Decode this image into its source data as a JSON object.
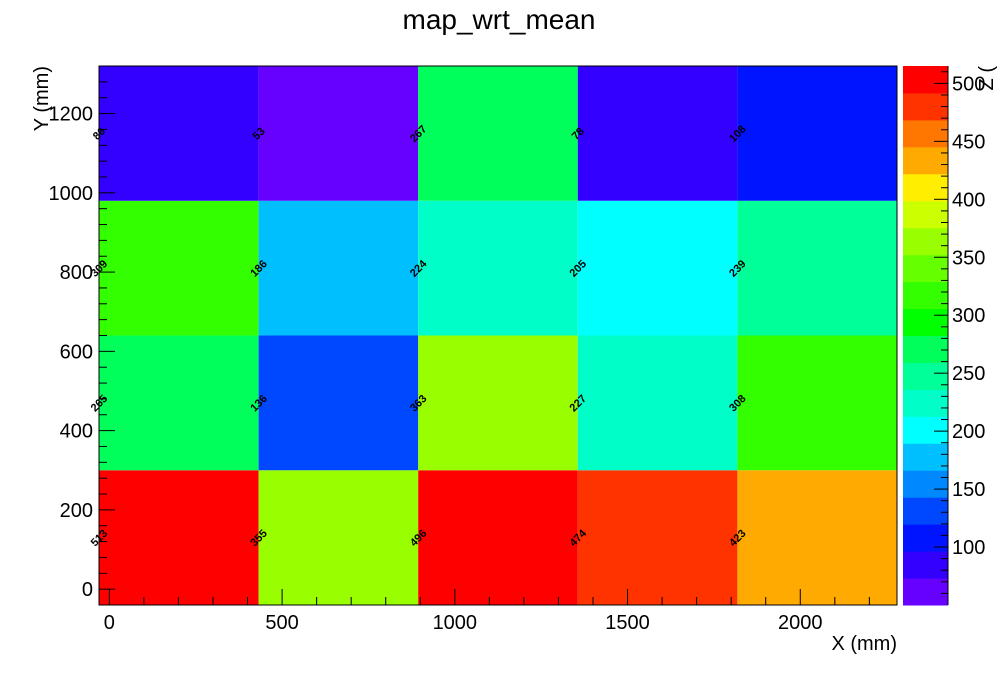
{
  "chart_data": {
    "type": "heatmap",
    "title": "map_wrt_mean",
    "xlabel": "X (mm)",
    "ylabel": "Y (mm)",
    "zlabel": "Z (",
    "xlim": [
      -30,
      2280
    ],
    "ylim": [
      -40,
      1320
    ],
    "zlim": [
      50,
      515
    ],
    "x_edges": [
      -30,
      432,
      894,
      1356,
      1818,
      2280
    ],
    "y_edges": [
      -40,
      300,
      640,
      980,
      1320
    ],
    "x_ticks": [
      0,
      500,
      1000,
      1500,
      2000
    ],
    "x_tick_labels": [
      "0",
      "500",
      "1000",
      "1500",
      "2000"
    ],
    "y_ticks": [
      0,
      200,
      400,
      600,
      800,
      1000,
      1200
    ],
    "y_tick_labels": [
      "0",
      "200",
      "400",
      "600",
      "800",
      "1000",
      "1200"
    ],
    "z_ticks": [
      100,
      150,
      200,
      250,
      300,
      350,
      400,
      450,
      500
    ],
    "z_tick_labels": [
      "100",
      "150",
      "200",
      "250",
      "300",
      "350",
      "400",
      "450",
      "500"
    ],
    "values": [
      [
        513,
        355,
        496,
        474,
        423
      ],
      [
        265,
        136,
        363,
        227,
        308
      ],
      [
        309,
        186,
        224,
        205,
        239
      ],
      [
        86,
        53,
        267,
        78,
        108
      ]
    ],
    "value_labels": [
      [
        "513",
        "355",
        "496",
        "474",
        "423"
      ],
      [
        "265",
        "136",
        "363",
        "227",
        "308"
      ],
      [
        "309",
        "186",
        "224",
        "205",
        "239"
      ],
      [
        "86",
        "53",
        "267",
        "78",
        "108"
      ]
    ],
    "palette": [
      "#6600ff",
      "#3300ff",
      "#0014ff",
      "#0048ff",
      "#0088ff",
      "#00bfff",
      "#00ffff",
      "#00ffc8",
      "#00ff98",
      "#00ff5a",
      "#00ff00",
      "#33ff00",
      "#66ff00",
      "#99ff00",
      "#ccff00",
      "#ffee00",
      "#ffaa00",
      "#ff7700",
      "#ff3300",
      "#ff0000"
    ],
    "grid": false,
    "legend": "colorbar-right"
  }
}
